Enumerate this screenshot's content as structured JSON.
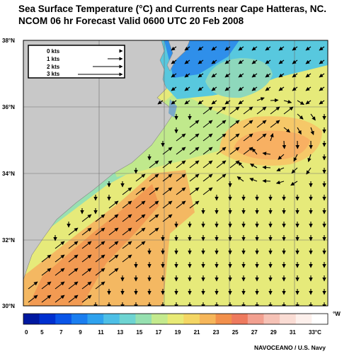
{
  "title": {
    "line1": "Sea Surface Temperature (°C) and Currents near Cape Hatteras, NC.",
    "line2": "NCOM 06 hr Forecast Valid 0600 UTC 20 Feb 2008"
  },
  "map": {
    "lat_labels": [
      "38°N",
      "36°N",
      "34°N",
      "32°N",
      "30°N"
    ],
    "land_color": "#c8c8c8",
    "grid_color": "#6e6e6e"
  },
  "speed_legend": {
    "entries": [
      {
        "label": "0 kts",
        "speed": 0
      },
      {
        "label": "1 kts",
        "speed": 1
      },
      {
        "label": "2 kts",
        "speed": 2
      },
      {
        "label": "3 kts",
        "speed": 3
      }
    ]
  },
  "colorbar": {
    "unit": "°W",
    "labels": [
      "0",
      "5",
      "7",
      "9",
      "11",
      "13",
      "15",
      "17",
      "19",
      "21",
      "23",
      "25",
      "27",
      "29",
      "31",
      "33°C"
    ],
    "colors": [
      "#0018a0",
      "#0030d0",
      "#0a55e8",
      "#1a7ef0",
      "#2ea2ee",
      "#4dbfe6",
      "#6ed4d2",
      "#96e0b0",
      "#c4ea8e",
      "#e8ea76",
      "#f4d664",
      "#f6b65a",
      "#f2904c",
      "#ee7a5e",
      "#f2a090",
      "#f6c2b6",
      "#fadcd4",
      "#fdf0ec",
      "#ffffff"
    ]
  },
  "credit": "NAVOCEANO / U.S. Navy"
}
